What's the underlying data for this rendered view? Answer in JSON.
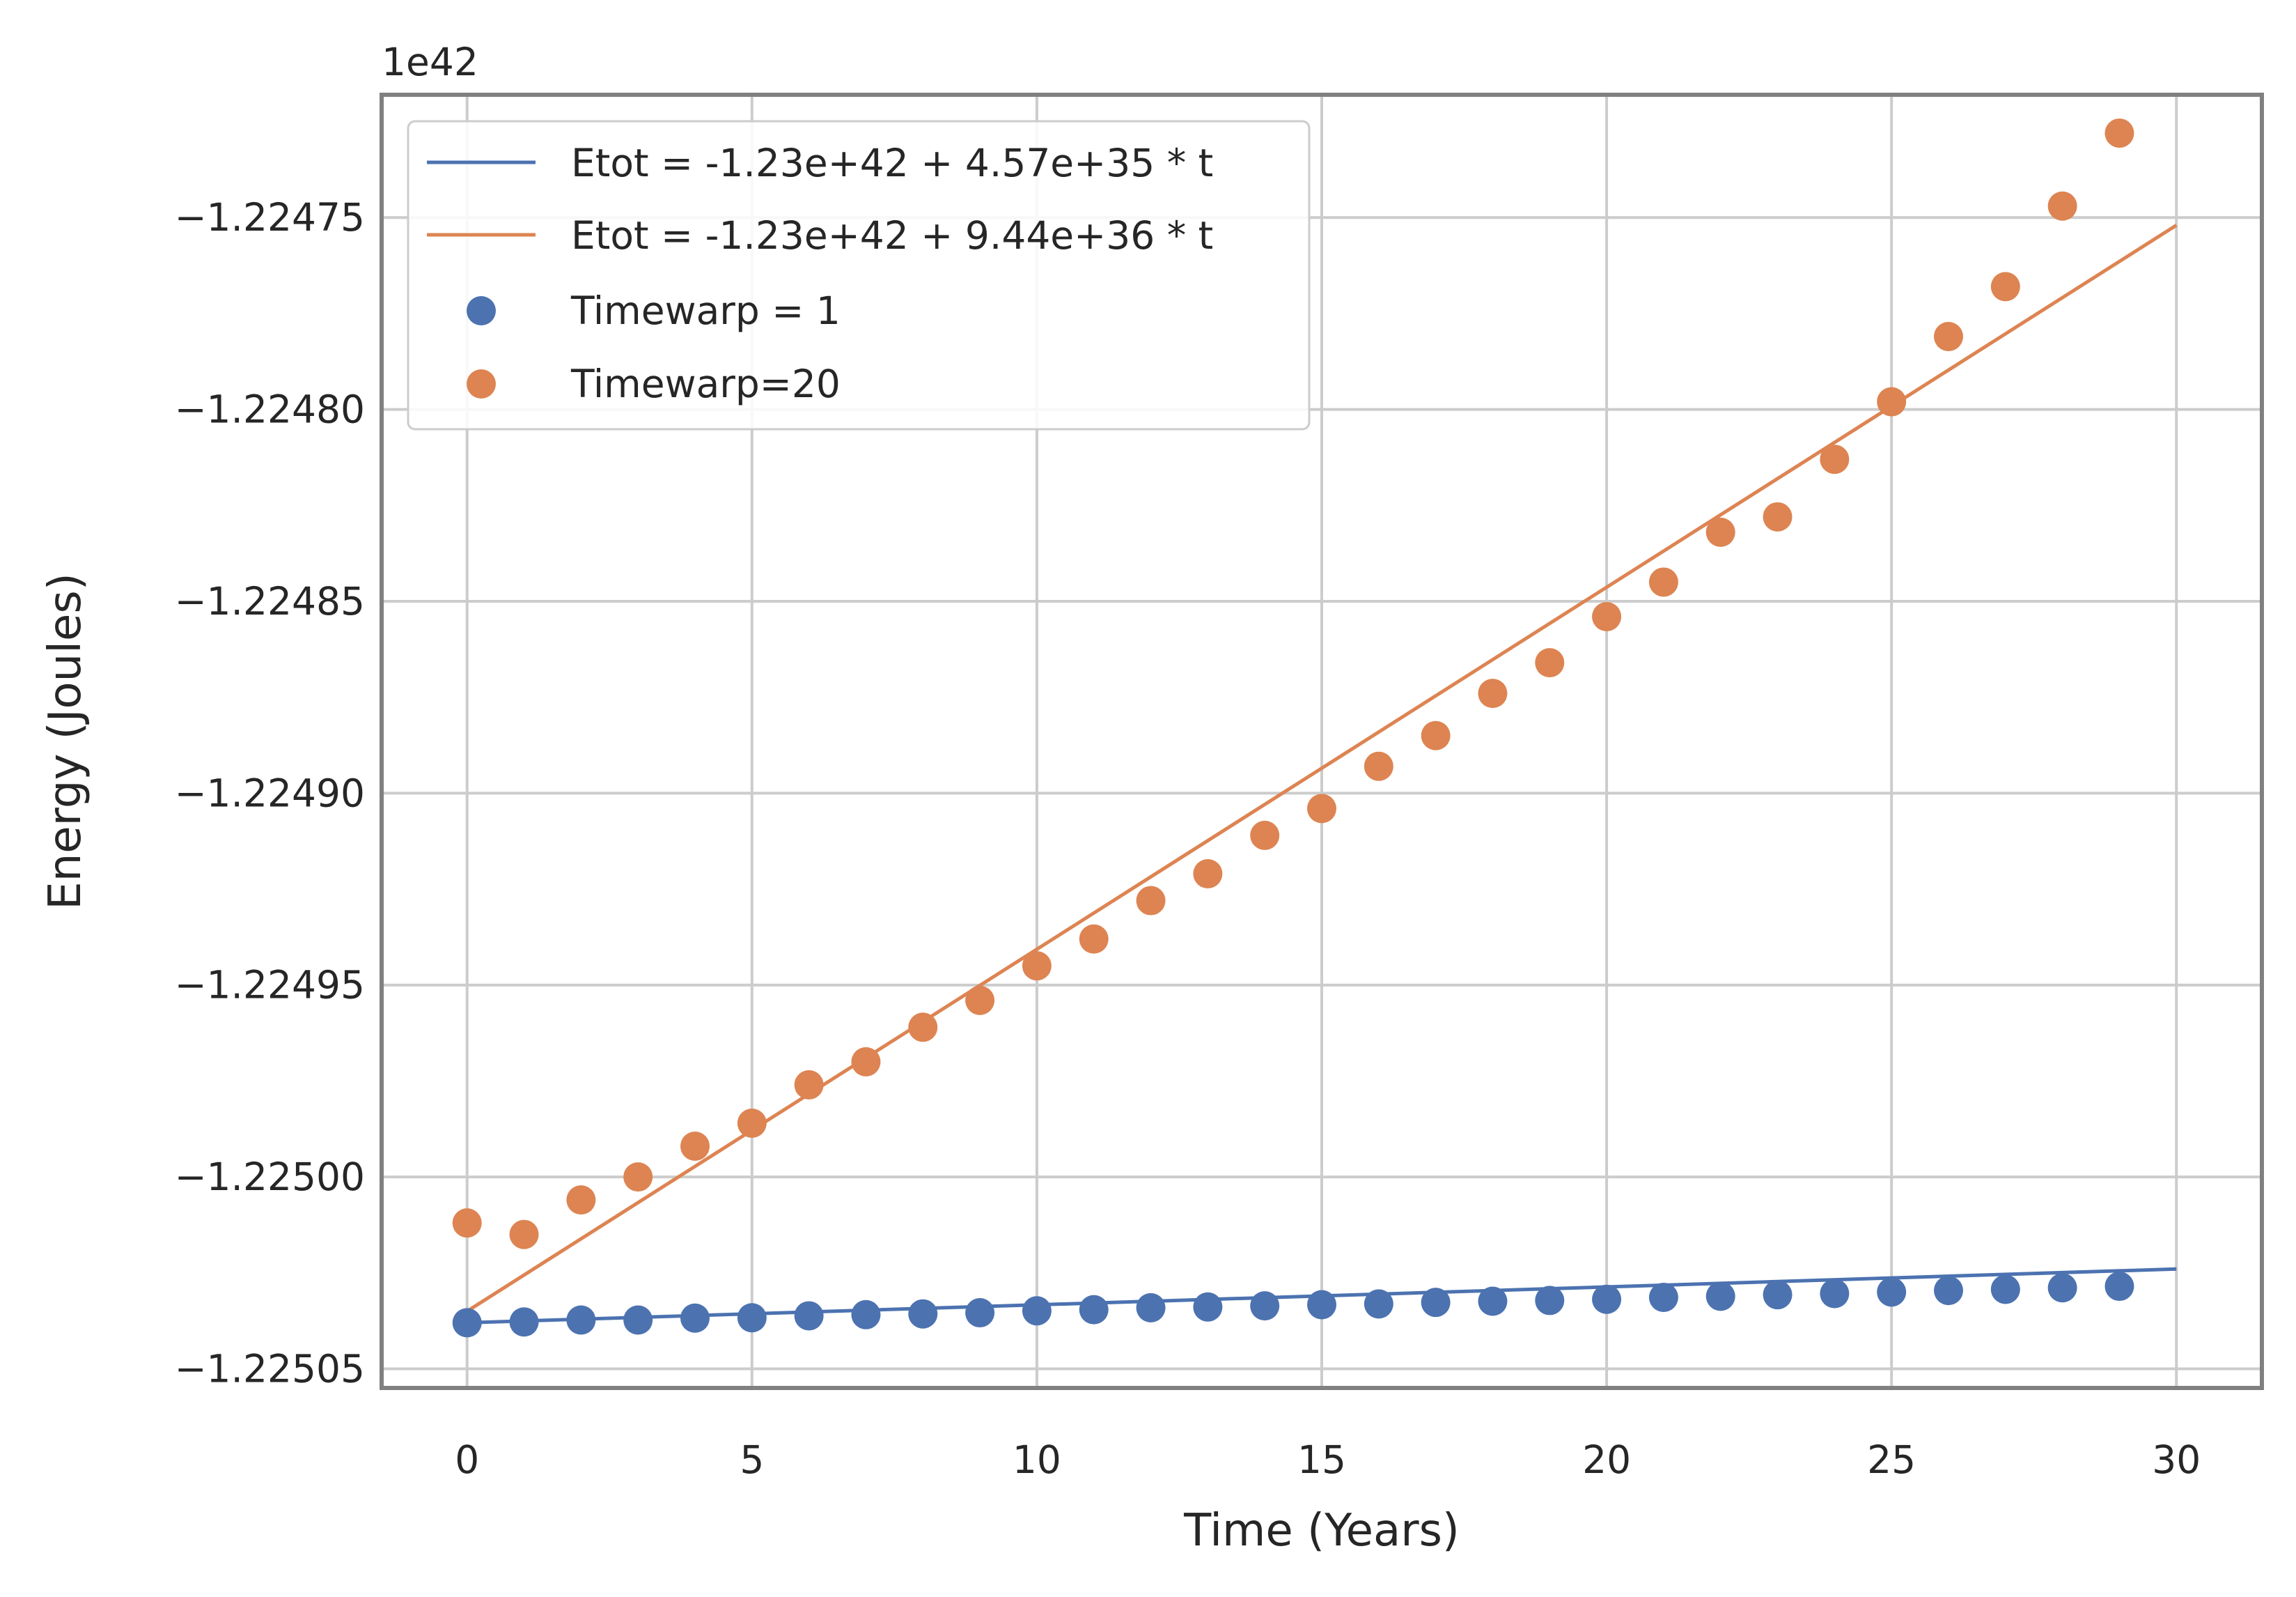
{
  "chart_data": {
    "type": "scatter",
    "xlabel": "Time (Years)",
    "ylabel": "Energy (Joules)",
    "y_offset_text": "1e42",
    "xlim": [
      -1.5,
      31.5
    ],
    "ylim": [
      -1.225055,
      -1.224718
    ],
    "x_ticks": [
      0,
      5,
      10,
      15,
      20,
      25,
      30
    ],
    "y_ticks": [
      -1.22505,
      -1.225,
      -1.22495,
      -1.2249,
      -1.22485,
      -1.2248,
      -1.22475
    ],
    "x_tick_labels": [
      "0",
      "5",
      "10",
      "15",
      "20",
      "25",
      "30"
    ],
    "y_tick_labels": [
      "−1.22505",
      "−1.22500",
      "−1.22495",
      "−1.22490",
      "−1.22485",
      "−1.22480",
      "−1.22475"
    ],
    "grid": true,
    "legend_position": "upper-left",
    "fit_lines": [
      {
        "name": "Etot = -1.23e+42 + 4.57e+35 * t",
        "color": "#4c72b0",
        "x": [
          0,
          30
        ],
        "y": [
          -1.225038,
          -1.225024
        ]
      },
      {
        "name": "Etot = -1.23e+42 + 9.44e+36 * t",
        "color": "#dd8452",
        "x": [
          0,
          30
        ],
        "y": [
          -1.225035,
          -1.224752
        ]
      }
    ],
    "series": [
      {
        "name": "Timewarp = 1",
        "color": "#4c72b0",
        "x": [
          0,
          1,
          2,
          3,
          4,
          5,
          6,
          7,
          8,
          9,
          10,
          11,
          12,
          13,
          14,
          15,
          16,
          17,
          18,
          19,
          20,
          21,
          22,
          23,
          24,
          25,
          26,
          27,
          28,
          29
        ],
        "y": [
          -1.225038,
          -1.2250378,
          -1.2250373,
          -1.2250373,
          -1.2250368,
          -1.2250367,
          -1.2250362,
          -1.2250359,
          -1.2250357,
          -1.2250354,
          -1.2250349,
          -1.2250346,
          -1.2250341,
          -1.2250339,
          -1.2250336,
          -1.2250333,
          -1.2250331,
          -1.2250327,
          -1.2250324,
          -1.2250322,
          -1.2250319,
          -1.2250314,
          -1.2250311,
          -1.2250307,
          -1.2250304,
          -1.22503,
          -1.2250296,
          -1.2250293,
          -1.2250289,
          -1.2250285
        ]
      },
      {
        "name": "Timewarp=20",
        "color": "#dd8452",
        "x": [
          0,
          1,
          2,
          3,
          4,
          5,
          6,
          7,
          8,
          9,
          10,
          11,
          12,
          13,
          14,
          15,
          16,
          17,
          18,
          19,
          20,
          21,
          22,
          23,
          24,
          25,
          26,
          27,
          28,
          29
        ],
        "y": [
          -1.225012,
          -1.225015,
          -1.225006,
          -1.225,
          -1.224992,
          -1.224986,
          -1.224976,
          -1.22497,
          -1.224961,
          -1.224954,
          -1.224945,
          -1.224938,
          -1.224928,
          -1.224921,
          -1.224911,
          -1.224904,
          -1.224893,
          -1.224885,
          -1.224874,
          -1.224866,
          -1.224854,
          -1.224845,
          -1.224832,
          -1.224828,
          -1.224813,
          -1.224798,
          -1.224781,
          -1.224768,
          -1.224747,
          -1.224728
        ]
      }
    ]
  }
}
